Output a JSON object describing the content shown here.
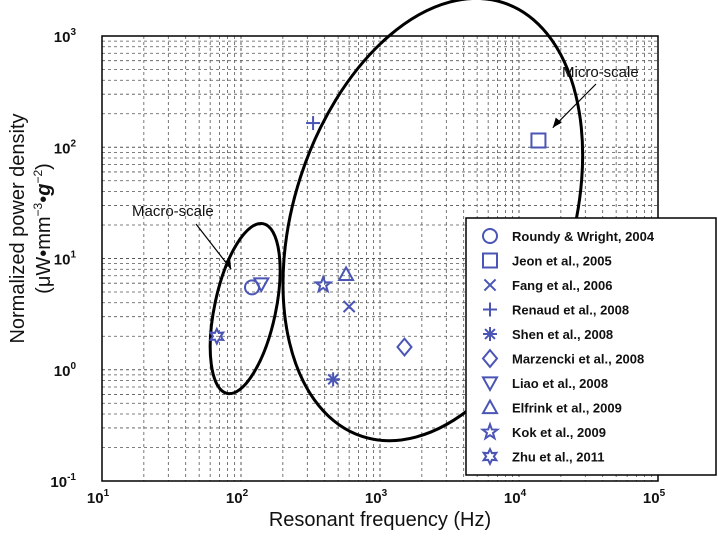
{
  "chart_data": {
    "type": "scatter",
    "xscale": "log",
    "yscale": "log",
    "xlim": [
      10,
      100000
    ],
    "ylim": [
      0.1,
      1000
    ],
    "grid": true,
    "grid_style": "dashed",
    "legend_position": "right",
    "marker_color": "#4a55b5",
    "xlabel": "Resonant frequency (Hz)",
    "ylabel_line1": "Normalized power density",
    "ylabel_line2_parts": [
      "(μW•mm",
      "−3",
      "•",
      "g",
      "−2",
      ")"
    ],
    "x_ticks": [
      {
        "base": "10",
        "exp": "1",
        "value": 10
      },
      {
        "base": "10",
        "exp": "2",
        "value": 100
      },
      {
        "base": "10",
        "exp": "3",
        "value": 1000
      },
      {
        "base": "10",
        "exp": "4",
        "value": 10000
      },
      {
        "base": "10",
        "exp": "5",
        "value": 100000
      }
    ],
    "y_ticks": [
      {
        "base": "10",
        "exp": "-1",
        "value": 0.1
      },
      {
        "base": "10",
        "exp": "0",
        "value": 1
      },
      {
        "base": "10",
        "exp": "1",
        "value": 10
      },
      {
        "base": "10",
        "exp": "2",
        "value": 100
      },
      {
        "base": "10",
        "exp": "3",
        "value": 1000
      }
    ],
    "series": [
      {
        "name": "Roundy & Wright, 2004",
        "marker": "circle",
        "points": [
          [
            120,
            5.5
          ]
        ]
      },
      {
        "name": "Jeon et al., 2005",
        "marker": "square",
        "points": [
          [
            13800,
            115
          ]
        ]
      },
      {
        "name": "Fang et al., 2006",
        "marker": "x",
        "points": [
          [
            600,
            3.7
          ]
        ]
      },
      {
        "name": "Renaud et al., 2008",
        "marker": "plus",
        "points": [
          [
            330,
            165
          ]
        ]
      },
      {
        "name": "Shen et al., 2008",
        "marker": "asterisk",
        "points": [
          [
            460,
            0.82
          ]
        ]
      },
      {
        "name": "Marzencki et al., 2008",
        "marker": "diamond",
        "points": [
          [
            1500,
            1.6
          ]
        ]
      },
      {
        "name": "Liao et al., 2008",
        "marker": "triangle-down",
        "points": [
          [
            140,
            5.9
          ]
        ]
      },
      {
        "name": "Elfrink et al., 2009",
        "marker": "triangle-up",
        "points": [
          [
            570,
            7.2
          ]
        ]
      },
      {
        "name": "Kok et al., 2009",
        "marker": "star5",
        "points": [
          [
            390,
            5.8
          ]
        ]
      },
      {
        "name": "Zhu et al., 2011",
        "marker": "star6",
        "points": [
          [
            67,
            2.0
          ]
        ]
      }
    ],
    "annotations": [
      {
        "text": "Macro-scale",
        "arrow_to": [
          85,
          8
        ]
      },
      {
        "text": "Micro-scale",
        "arrow_to": [
          17500,
          150
        ]
      }
    ],
    "regions": [
      {
        "label": "Macro-scale",
        "cx_log": 2.03,
        "cy_log": 0.55,
        "rx_decades": 0.22,
        "ry_decades": 0.78,
        "rotation": 12
      },
      {
        "label": "Micro-scale",
        "cx_log": 3.38,
        "cy_log": 1.35,
        "rx_decades": 1.0,
        "ry_decades": 2.05,
        "rotation": 18
      }
    ]
  }
}
